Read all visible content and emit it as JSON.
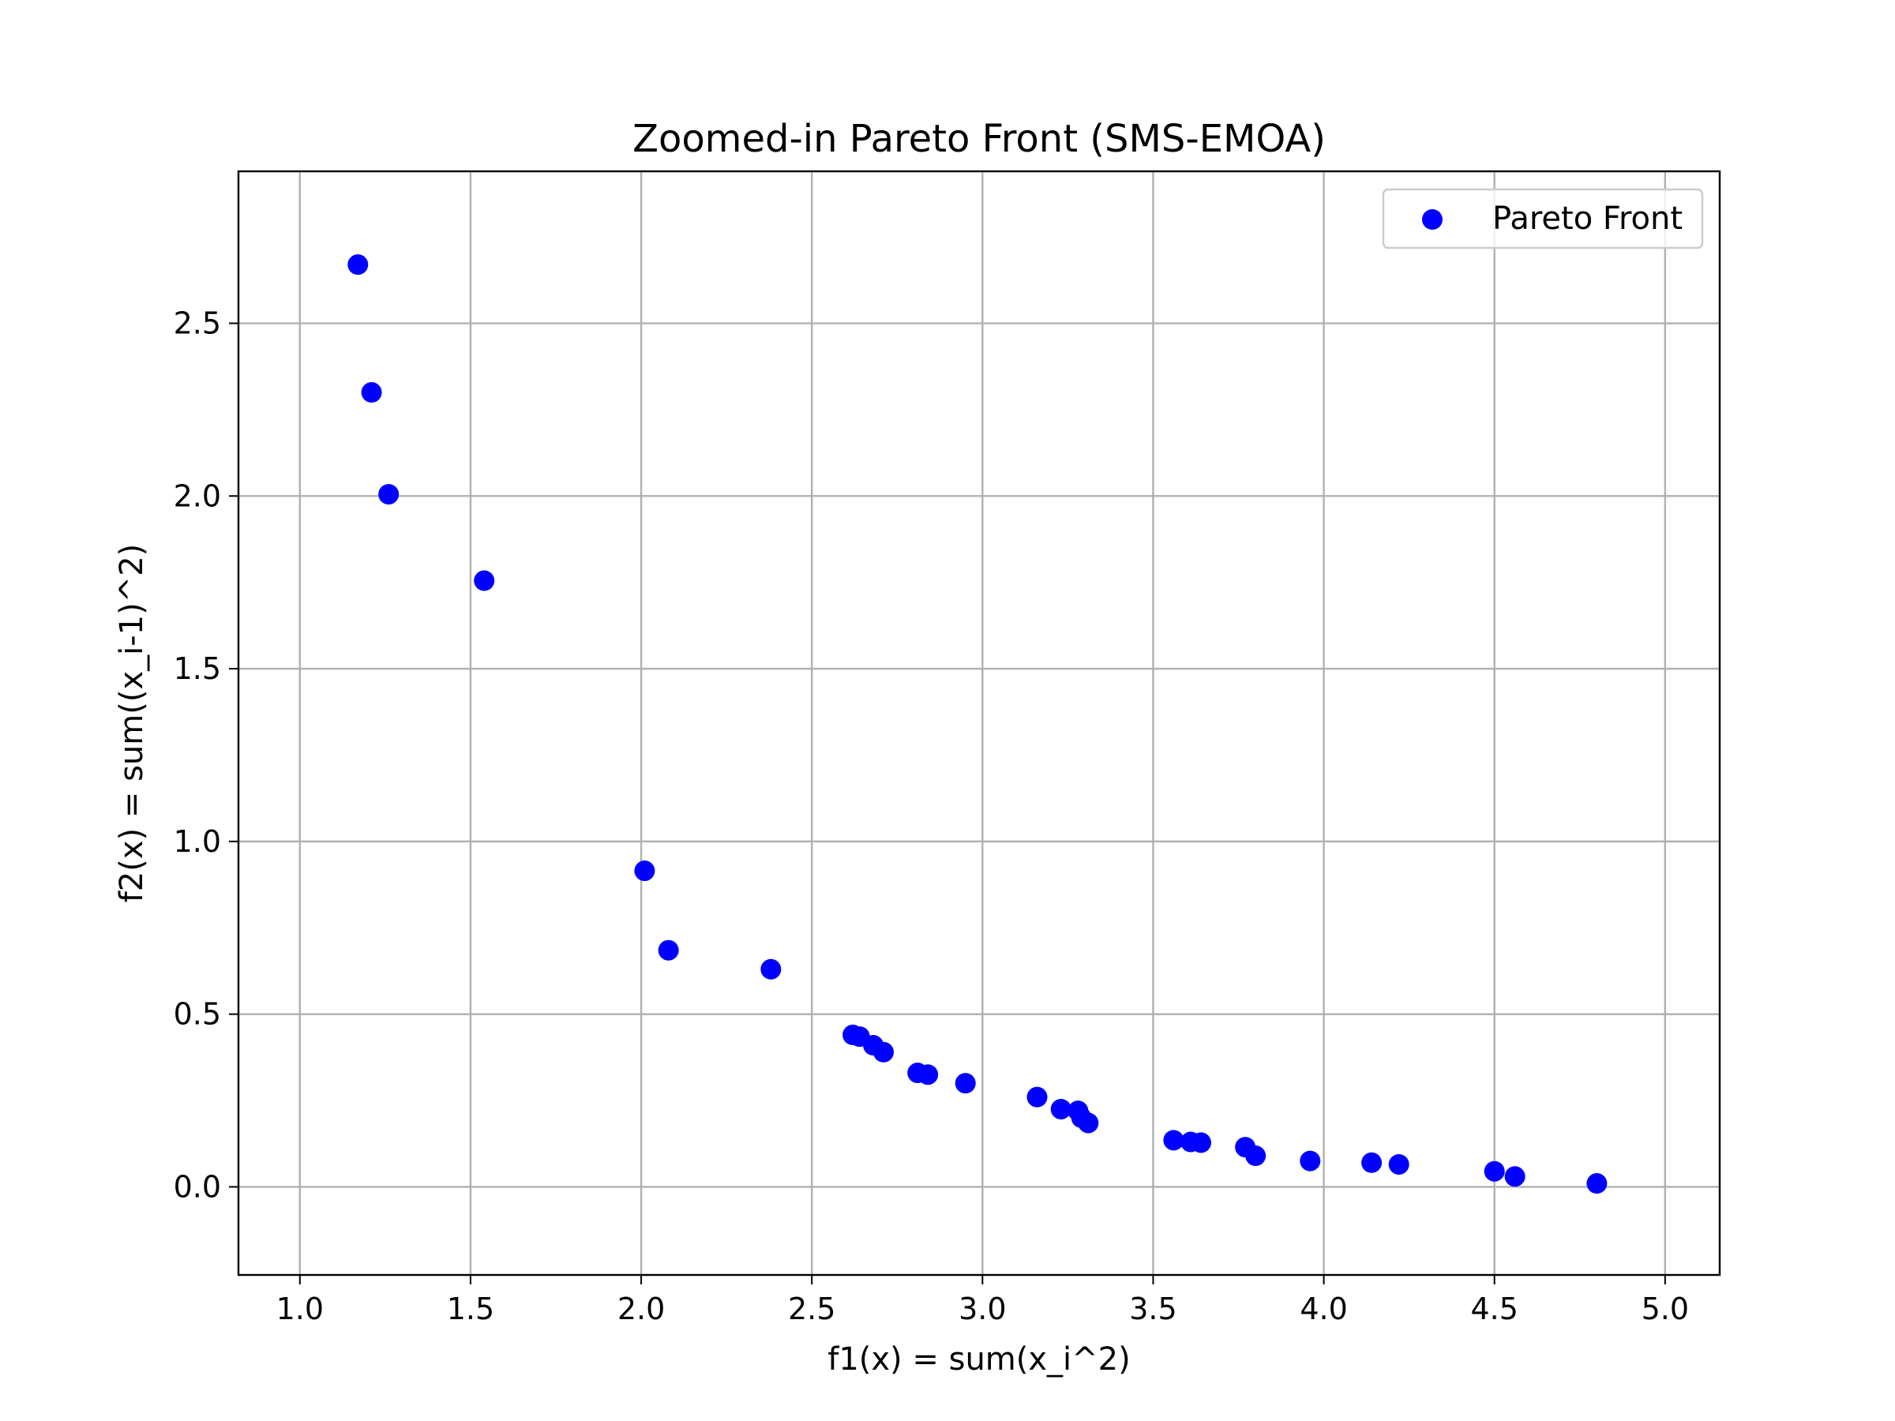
{
  "chart_data": {
    "type": "scatter",
    "title": "Zoomed-in Pareto Front (SMS-EMOA)",
    "xlabel": "f1(x) = sum(x_i^2)",
    "ylabel": "f2(x) = sum((x_i-1)^2)",
    "xlim": [
      0.82,
      5.16
    ],
    "ylim": [
      -0.255,
      2.94
    ],
    "xticks": [
      1.0,
      1.5,
      2.0,
      2.5,
      3.0,
      3.5,
      4.0,
      4.5,
      5.0
    ],
    "xtick_labels": [
      "1.0",
      "1.5",
      "2.0",
      "2.5",
      "3.0",
      "3.5",
      "4.0",
      "4.5",
      "5.0"
    ],
    "yticks": [
      0.0,
      0.5,
      1.0,
      1.5,
      2.0,
      2.5
    ],
    "ytick_labels": [
      "0.0",
      "0.5",
      "1.0",
      "1.5",
      "2.0",
      "2.5"
    ],
    "grid": true,
    "legend": {
      "position": "top-right",
      "entries": [
        "Pareto Front"
      ]
    },
    "series": [
      {
        "name": "Pareto Front",
        "color": "#0000ff",
        "points": [
          [
            1.17,
            2.67
          ],
          [
            1.21,
            2.3
          ],
          [
            1.26,
            2.005
          ],
          [
            1.54,
            1.755
          ],
          [
            2.01,
            0.915
          ],
          [
            2.08,
            0.685
          ],
          [
            2.38,
            0.63
          ],
          [
            2.62,
            0.44
          ],
          [
            2.64,
            0.435
          ],
          [
            2.68,
            0.41
          ],
          [
            2.71,
            0.39
          ],
          [
            2.81,
            0.33
          ],
          [
            2.84,
            0.325
          ],
          [
            2.95,
            0.3
          ],
          [
            3.16,
            0.26
          ],
          [
            3.23,
            0.225
          ],
          [
            3.28,
            0.22
          ],
          [
            3.29,
            0.2
          ],
          [
            3.31,
            0.185
          ],
          [
            3.56,
            0.135
          ],
          [
            3.61,
            0.13
          ],
          [
            3.64,
            0.128
          ],
          [
            3.77,
            0.115
          ],
          [
            3.8,
            0.09
          ],
          [
            3.96,
            0.075
          ],
          [
            4.14,
            0.07
          ],
          [
            4.22,
            0.065
          ],
          [
            4.5,
            0.045
          ],
          [
            4.56,
            0.03
          ],
          [
            4.8,
            0.01
          ]
        ]
      }
    ]
  }
}
